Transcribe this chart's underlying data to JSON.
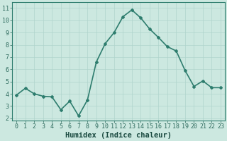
{
  "x": [
    0,
    1,
    2,
    3,
    4,
    5,
    6,
    7,
    8,
    9,
    10,
    11,
    12,
    13,
    14,
    15,
    16,
    17,
    18,
    19,
    20,
    21,
    22,
    23
  ],
  "y": [
    3.9,
    4.45,
    4.0,
    3.8,
    3.75,
    2.7,
    3.4,
    2.2,
    3.5,
    6.6,
    8.1,
    9.0,
    10.3,
    10.85,
    10.2,
    9.3,
    8.6,
    7.85,
    7.5,
    5.9,
    4.6,
    5.05,
    4.5,
    4.5
  ],
  "line_color": "#2e7d6e",
  "marker": "D",
  "marker_size": 2.0,
  "bg_color": "#cce8e0",
  "grid_color": "#b0d4cc",
  "xlabel": "Humidex (Indice chaleur)",
  "xlim": [
    -0.5,
    23.5
  ],
  "ylim": [
    1.8,
    11.5
  ],
  "yticks": [
    2,
    3,
    4,
    5,
    6,
    7,
    8,
    9,
    10,
    11
  ],
  "xticks": [
    0,
    1,
    2,
    3,
    4,
    5,
    6,
    7,
    8,
    9,
    10,
    11,
    12,
    13,
    14,
    15,
    16,
    17,
    18,
    19,
    20,
    21,
    22,
    23
  ],
  "tick_fontsize": 6.0,
  "xlabel_fontsize": 7.5,
  "line_width": 1.2
}
